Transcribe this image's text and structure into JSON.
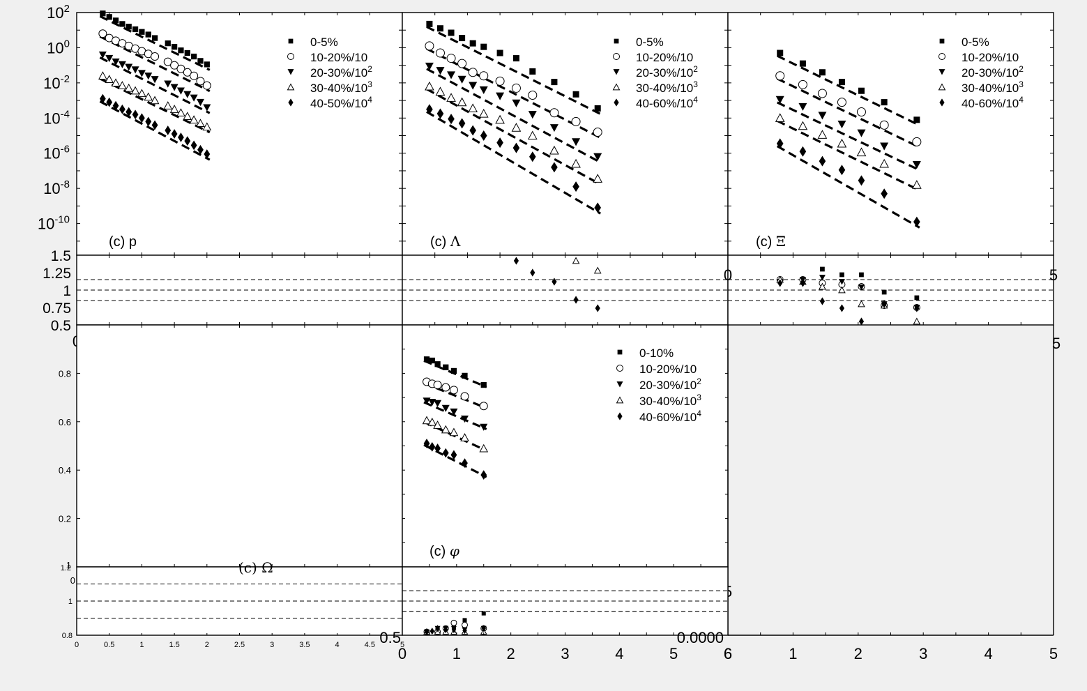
{
  "figure": {
    "background": "#f0f0f0",
    "axes_color": "#000000",
    "marker_color": "#000000"
  },
  "chart_data": [
    {
      "id": "p",
      "type": "scatter",
      "panel_label": "(c) p",
      "label_parts": [
        "(c) ",
        "p"
      ],
      "y_scale": "log",
      "y_tick_exponents": [
        2,
        0,
        -2,
        -4,
        -6,
        -8,
        -10
      ],
      "ylim_exp": [
        -11.8,
        2
      ],
      "xlim": [
        0,
        5
      ],
      "legend_position": "top-right",
      "legend": [
        "0-5%",
        "10-20%/10",
        "20-30%/10^2",
        "30-40%/10^3",
        "40-50%/10^4"
      ],
      "series": [
        {
          "marker": "square",
          "x": [
            0.4,
            0.5,
            0.6,
            0.7,
            0.8,
            0.9,
            1.0,
            1.1,
            1.2,
            1.4,
            1.5,
            1.6,
            1.7,
            1.8,
            1.9,
            2.0
          ],
          "y_exp": [
            1.95,
            1.75,
            1.55,
            1.35,
            1.2,
            1.05,
            0.9,
            0.75,
            0.55,
            0.25,
            0.05,
            -0.15,
            -0.3,
            -0.5,
            -0.75,
            -0.95
          ]
        },
        {
          "marker": "circle",
          "x": [
            0.4,
            0.5,
            0.6,
            0.7,
            0.8,
            0.9,
            1.0,
            1.1,
            1.2,
            1.4,
            1.5,
            1.6,
            1.7,
            1.8,
            1.9,
            2.0
          ],
          "y_exp": [
            0.8,
            0.55,
            0.4,
            0.25,
            0.1,
            -0.05,
            -0.2,
            -0.35,
            -0.5,
            -0.8,
            -1.0,
            -1.2,
            -1.4,
            -1.6,
            -1.9,
            -2.15
          ]
        },
        {
          "marker": "triangle-down",
          "x": [
            0.4,
            0.5,
            0.6,
            0.7,
            0.8,
            0.9,
            1.0,
            1.1,
            1.2,
            1.4,
            1.5,
            1.6,
            1.7,
            1.8,
            1.9,
            2.0
          ],
          "y_exp": [
            -0.4,
            -0.6,
            -0.8,
            -0.95,
            -1.1,
            -1.25,
            -1.45,
            -1.6,
            -1.8,
            -2.05,
            -2.25,
            -2.45,
            -2.65,
            -2.85,
            -3.1,
            -3.4
          ]
        },
        {
          "marker": "triangle-up",
          "x": [
            0.4,
            0.5,
            0.6,
            0.7,
            0.8,
            0.9,
            1.0,
            1.1,
            1.2,
            1.4,
            1.5,
            1.6,
            1.7,
            1.8,
            1.9,
            2.0
          ],
          "y_exp": [
            -1.6,
            -1.8,
            -2.0,
            -2.15,
            -2.3,
            -2.45,
            -2.6,
            -2.8,
            -3.0,
            -3.3,
            -3.5,
            -3.7,
            -3.9,
            -4.1,
            -4.3,
            -4.5
          ]
        },
        {
          "marker": "diamond",
          "x": [
            0.4,
            0.5,
            0.6,
            0.7,
            0.8,
            0.9,
            1.0,
            1.1,
            1.2,
            1.4,
            1.5,
            1.6,
            1.7,
            1.8,
            1.9,
            2.0
          ],
          "y_exp": [
            -2.9,
            -3.1,
            -3.3,
            -3.5,
            -3.65,
            -3.8,
            -4.0,
            -4.2,
            -4.4,
            -4.7,
            -4.9,
            -5.1,
            -5.3,
            -5.55,
            -5.8,
            -6.05
          ]
        }
      ]
    },
    {
      "id": "lambda",
      "type": "scatter",
      "panel_label": "(c) Λ",
      "label_parts": [
        "(c) ",
        "Λ"
      ],
      "y_scale": "log",
      "ylim_exp": [
        -11.8,
        2
      ],
      "xlim": [
        0,
        6
      ],
      "legend_position": "top-right",
      "legend": [
        "0-5%",
        "10-20%/10",
        "20-30%/10^2",
        "30-40%/10^3",
        "40-60%/10^4"
      ],
      "series": [
        {
          "marker": "square",
          "x": [
            0.5,
            0.7,
            0.9,
            1.1,
            1.3,
            1.5,
            1.8,
            2.1,
            2.4,
            2.8,
            3.2,
            3.6
          ],
          "y_exp": [
            1.35,
            1.1,
            0.85,
            0.55,
            0.25,
            0.05,
            -0.3,
            -0.6,
            -1.35,
            -1.95,
            -2.65,
            -3.45
          ]
        },
        {
          "marker": "circle",
          "x": [
            0.5,
            0.7,
            0.9,
            1.1,
            1.3,
            1.5,
            1.8,
            2.1,
            2.4,
            2.8,
            3.2,
            3.6
          ],
          "y_exp": [
            0.1,
            -0.3,
            -0.6,
            -0.9,
            -1.4,
            -1.6,
            -1.9,
            -2.3,
            -2.7,
            -3.7,
            -4.2,
            -4.8
          ]
        },
        {
          "marker": "triangle-down",
          "x": [
            0.5,
            0.7,
            0.9,
            1.1,
            1.3,
            1.5,
            1.8,
            2.1,
            2.4,
            2.8,
            3.2,
            3.6
          ],
          "y_exp": [
            -1.05,
            -1.3,
            -1.55,
            -1.8,
            -2.15,
            -2.4,
            -2.75,
            -3.15,
            -3.8,
            -4.55,
            -5.35,
            -6.2
          ]
        },
        {
          "marker": "triangle-up",
          "x": [
            0.5,
            0.7,
            0.9,
            1.1,
            1.3,
            1.5,
            1.8,
            2.1,
            2.4,
            2.8,
            3.2,
            3.6
          ],
          "y_exp": [
            -2.2,
            -2.5,
            -2.85,
            -3.1,
            -3.45,
            -3.75,
            -4.1,
            -4.55,
            -5.0,
            -5.85,
            -6.6,
            -7.45
          ]
        },
        {
          "marker": "diamond",
          "x": [
            0.5,
            0.7,
            0.9,
            1.1,
            1.3,
            1.5,
            1.8,
            2.1,
            2.4,
            2.8,
            3.2,
            3.6
          ],
          "y_exp": [
            -3.5,
            -3.75,
            -4.05,
            -4.3,
            -4.7,
            -5.0,
            -5.4,
            -5.7,
            -6.2,
            -6.8,
            -7.9,
            -9.1
          ]
        }
      ]
    },
    {
      "id": "xi",
      "type": "scatter",
      "panel_label": "(c) Ξ",
      "label_parts": [
        "(c) ",
        "Ξ"
      ],
      "y_scale": "log",
      "ylim_exp": [
        -11.8,
        2
      ],
      "xlim": [
        0,
        5
      ],
      "legend_position": "top-right",
      "legend": [
        "0-5%",
        "10-20%/10",
        "20-30%/10^2",
        "30-40%/10^3",
        "40-60%/10^4"
      ],
      "series": [
        {
          "marker": "square",
          "x": [
            0.8,
            1.15,
            1.45,
            1.75,
            2.05,
            2.4,
            2.9
          ],
          "y_exp": [
            -0.3,
            -0.9,
            -1.4,
            -1.95,
            -2.45,
            -3.1,
            -4.1
          ]
        },
        {
          "marker": "circle",
          "x": [
            0.8,
            1.15,
            1.45,
            1.75,
            2.05,
            2.4,
            2.9
          ],
          "y_exp": [
            -1.6,
            -2.1,
            -2.6,
            -3.1,
            -3.65,
            -4.4,
            -5.35
          ]
        },
        {
          "marker": "triangle-down",
          "x": [
            0.8,
            1.15,
            1.45,
            1.75,
            2.05,
            2.4,
            2.9
          ],
          "y_exp": [
            -2.95,
            -3.35,
            -3.85,
            -4.35,
            -4.85,
            -5.6,
            -6.65
          ]
        },
        {
          "marker": "triangle-up",
          "x": [
            0.8,
            1.15,
            1.45,
            1.75,
            2.05,
            2.4,
            2.9
          ],
          "y_exp": [
            -4.0,
            -4.45,
            -4.95,
            -5.45,
            -5.95,
            -6.6,
            -7.8
          ]
        },
        {
          "marker": "diamond",
          "x": [
            0.8,
            1.15,
            1.45,
            1.75,
            2.05,
            2.4,
            2.9
          ],
          "y_exp": [
            -5.45,
            -5.9,
            -6.45,
            -6.95,
            -7.55,
            -8.3,
            -9.9
          ]
        }
      ]
    },
    {
      "id": "ratio-p",
      "type": "scatter",
      "y_ticks": [
        "1.5",
        "1.25",
        "1",
        "0.75",
        "0.5"
      ],
      "x_ticks": [
        "0"
      ],
      "ylim": [
        0.5,
        1.5
      ],
      "xlim": [
        0,
        5
      ],
      "dashed_lines_y": [
        0.85,
        1.0,
        1.15
      ],
      "series": []
    },
    {
      "id": "ratio-lambda",
      "type": "scatter",
      "ylim": [
        0.5,
        1.5
      ],
      "xlim": [
        0,
        6
      ],
      "dashed_lines_y": [
        0.85,
        1.0,
        1.15
      ],
      "series": [
        {
          "marker": "diamond",
          "x": [
            2.1,
            2.4,
            2.8,
            3.2,
            3.6
          ],
          "y": [
            1.42,
            1.25,
            1.12,
            0.86,
            0.74
          ]
        },
        {
          "marker": "triangle-up",
          "x": [
            3.2,
            3.6
          ],
          "y": [
            1.42,
            1.28
          ]
        }
      ]
    },
    {
      "id": "ratio-xi",
      "type": "scatter",
      "x_ticks_overlap": [
        "0",
        "5"
      ],
      "ylim": [
        0.5,
        1.5
      ],
      "xlim": [
        0,
        5
      ],
      "dashed_lines_y": [
        0.85,
        1.0,
        1.15
      ],
      "series": [
        {
          "marker": "square",
          "x": [
            0.8,
            1.15,
            1.45,
            1.75,
            2.05,
            2.4,
            2.9
          ],
          "y": [
            1.15,
            1.15,
            1.3,
            1.22,
            1.22,
            0.97,
            0.89
          ]
        },
        {
          "marker": "circle",
          "x": [
            0.8,
            1.15,
            1.45,
            1.75,
            2.05,
            2.4,
            2.9
          ],
          "y": [
            1.15,
            1.15,
            1.1,
            1.08,
            1.05,
            0.78,
            0.75
          ]
        },
        {
          "marker": "triangle-down",
          "x": [
            0.8,
            1.15,
            1.45,
            1.75,
            2.05,
            2.4,
            2.9
          ],
          "y": [
            1.12,
            1.15,
            1.18,
            1.12,
            1.04,
            0.8,
            0.75
          ]
        },
        {
          "marker": "triangle-up",
          "x": [
            0.8,
            1.15,
            1.45,
            1.75,
            2.05,
            2.4,
            2.9
          ],
          "y": [
            1.15,
            1.12,
            1.05,
            1.0,
            0.8,
            0.78,
            0.55
          ]
        },
        {
          "marker": "diamond",
          "x": [
            0.8,
            1.15,
            1.45,
            1.75,
            2.05,
            2.4,
            2.9
          ],
          "y": [
            1.1,
            1.1,
            0.84,
            0.74,
            0.55,
            0.8,
            0.74
          ]
        }
      ]
    },
    {
      "id": "omega",
      "type": "scatter",
      "y_ticks": [
        "0.8",
        "0.6",
        "0.4",
        "0.2"
      ],
      "ylim": [
        0,
        1
      ],
      "xlim": [
        0,
        5
      ],
      "corner_labels": [
        "1",
        "0"
      ],
      "series": []
    },
    {
      "id": "phi",
      "type": "scatter",
      "panel_label": "(c) φ",
      "label_parts": [
        "(c) ",
        "φ"
      ],
      "xlim": [
        0,
        6
      ],
      "ylim": [
        0,
        1
      ],
      "legend_position": "top-right",
      "legend": [
        "0-10%",
        "10-20%/10",
        "20-30%/10^2",
        "30-40%/10^3",
        "40-60%/10^4"
      ],
      "series": [
        {
          "marker": "square",
          "x": [
            0.45,
            0.55,
            0.65,
            0.8,
            0.95,
            1.15,
            1.5
          ],
          "y": [
            0.858,
            0.853,
            0.838,
            0.825,
            0.81,
            0.79,
            0.752
          ]
        },
        {
          "marker": "circle",
          "x": [
            0.45,
            0.55,
            0.65,
            0.8,
            0.95,
            1.15,
            1.5
          ],
          "y": [
            0.765,
            0.757,
            0.752,
            0.742,
            0.731,
            0.705,
            0.665
          ]
        },
        {
          "marker": "triangle-down",
          "x": [
            0.45,
            0.55,
            0.65,
            0.8,
            0.95,
            1.15,
            1.5
          ],
          "y": [
            0.686,
            0.681,
            0.676,
            0.656,
            0.641,
            0.612,
            0.578
          ]
        },
        {
          "marker": "triangle-up",
          "x": [
            0.45,
            0.55,
            0.65,
            0.8,
            0.95,
            1.15,
            1.5
          ],
          "y": [
            0.605,
            0.598,
            0.586,
            0.567,
            0.556,
            0.534,
            0.489
          ]
        },
        {
          "marker": "diamond",
          "x": [
            0.45,
            0.55,
            0.65,
            0.8,
            0.95,
            1.15,
            1.5
          ],
          "y": [
            0.51,
            0.496,
            0.49,
            0.471,
            0.463,
            0.429,
            0.38
          ]
        }
      ]
    },
    {
      "id": "ratio-omega",
      "type": "scatter",
      "y_ticks": [
        "1",
        "0.8"
      ],
      "y_top_label": "1.2",
      "x_ticks": [
        "0",
        "0.5",
        "1",
        "1.5",
        "2",
        "2.5",
        "3",
        "3.5",
        "4",
        "4.5",
        "5"
      ],
      "ylim": [
        0.8,
        1.2
      ],
      "xlim": [
        0,
        5
      ],
      "dashed_lines_y": [
        0.9,
        1.0,
        1.1
      ],
      "partial_label": "(c) Ω",
      "series": []
    },
    {
      "id": "ratio-phi",
      "type": "scatter",
      "x_ticks": [
        "0",
        "1",
        "2",
        "3",
        "4",
        "5",
        "6"
      ],
      "ylim": [
        0.5,
        1.5
      ],
      "xlim": [
        0,
        6
      ],
      "dashed_lines_y": [
        0.85,
        1.0,
        1.15
      ],
      "overlap_labels": [
        "0.5",
        "0.0000"
      ],
      "series": [
        {
          "marker": "square",
          "x": [
            0.45,
            0.65,
            0.8,
            0.95,
            1.15,
            1.5
          ],
          "y": [
            0.55,
            0.6,
            0.6,
            0.62,
            0.72,
            0.82
          ]
        },
        {
          "marker": "circle",
          "x": [
            0.45,
            0.65,
            0.8,
            0.95,
            1.15,
            1.5
          ],
          "y": [
            0.55,
            0.55,
            0.6,
            0.68,
            0.65,
            0.6
          ]
        },
        {
          "marker": "triangle-down",
          "x": [
            0.45,
            0.65,
            0.8,
            0.95,
            1.15,
            1.5
          ],
          "y": [
            0.55,
            0.6,
            0.6,
            0.6,
            0.58,
            0.6
          ]
        },
        {
          "marker": "triangle-up",
          "x": [
            0.45,
            0.65,
            0.8,
            0.95,
            1.15,
            1.5
          ],
          "y": [
            0.55,
            0.55,
            0.55,
            0.55,
            0.55,
            0.55
          ]
        },
        {
          "marker": "diamond",
          "x": [
            0.45,
            0.55,
            0.65,
            0.8,
            0.95,
            1.15,
            1.5
          ],
          "y": [
            0.55,
            0.56,
            0.6,
            0.58,
            0.58,
            0.57,
            0.6
          ]
        }
      ]
    },
    {
      "id": "bottom-right-axis",
      "type": "scatter",
      "x_ticks": [
        "1",
        "2",
        "3",
        "4",
        "5"
      ],
      "x_tick_labels_overlap": [
        "6"
      ],
      "xlim": [
        0,
        5
      ],
      "side_labels": [
        "5",
        "5"
      ],
      "series": []
    }
  ]
}
